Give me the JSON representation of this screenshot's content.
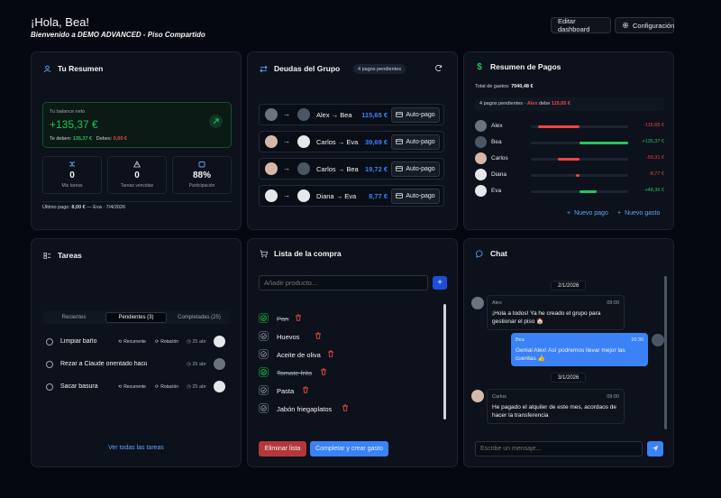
{
  "header": {
    "greeting": "¡Hola, Bea!",
    "subtitle": "Bienvenido a DEMO ADVANCED - Piso Compartido",
    "edit_btn": "Editar dashboard",
    "config_btn": "Configuración"
  },
  "summary": {
    "title": "Tu Resumen",
    "balance_label": "Tu balance neto",
    "balance": "+135,37 €",
    "owed_label": "Te deben:",
    "owed": "135,37 €",
    "debt_label": "Debes:",
    "debt": "0,00 €",
    "stats": [
      {
        "value": "0",
        "label": "Mis tareas",
        "icon": "shuffle-icon"
      },
      {
        "value": "0",
        "label": "Tareas vencidas",
        "icon": "warning-icon"
      },
      {
        "value": "88%",
        "label": "Participación",
        "icon": "calendar-icon"
      }
    ],
    "last_payment": "Último pago:",
    "last_amount": "8,00 €",
    "last_detail": "— Eva · 7/4/2026"
  },
  "debts": {
    "title": "Deudas del Grupo",
    "badge": "4 pagos pendientes",
    "autopay": "Auto-pago",
    "items": [
      {
        "pair": "Alex → Bea",
        "amount": "115,65 €"
      },
      {
        "pair": "Carlos → Eva",
        "amount": "39,69 €"
      },
      {
        "pair": "Carlos → Bea",
        "amount": "19,72 €"
      },
      {
        "pair": "Diana → Eva",
        "amount": "8,77 €"
      }
    ]
  },
  "payments": {
    "title": "Resumen de Pagos",
    "total_label": "Total de gastos:",
    "total": "7040,48 €",
    "note_prefix": "4 pagos pendientes ·",
    "note_person": "Alex",
    "note_mid": "debe",
    "note_amount": "115,65 €",
    "rows": [
      {
        "name": "Alex",
        "value": "-115,65 €",
        "fraction": -0.85,
        "color": "#ef4444"
      },
      {
        "name": "Bea",
        "value": "+135,37 €",
        "fraction": 1.0,
        "color": "#22c55e"
      },
      {
        "name": "Carlos",
        "value": "-59,31 €",
        "fraction": -0.44,
        "color": "#ef4444"
      },
      {
        "name": "Diana",
        "value": "-8,77 €",
        "fraction": -0.07,
        "color": "#ef4444"
      },
      {
        "name": "Eva",
        "value": "+48,36 €",
        "fraction": 0.36,
        "color": "#22c55e"
      }
    ],
    "new_payment": "Nuevo pago",
    "new_expense": "Nuevo gasto"
  },
  "tasks": {
    "title": "Tareas",
    "tabs": [
      "Recientes",
      "Pendientes (3)",
      "Completadas (25)"
    ],
    "recurring": "Recurrente",
    "rotation": "Rotación",
    "items": [
      {
        "label": "Limpiar baño",
        "date": "25 abr",
        "tags": true
      },
      {
        "label": "Rezar a Claude orientado hacia el datacenter",
        "date": "26 abr",
        "tags": false
      },
      {
        "label": "Sacar basura",
        "date": "25 abr",
        "tags": true
      }
    ],
    "see_all": "Ver todas las tareas"
  },
  "shopping": {
    "title": "Lista de la compra",
    "placeholder": "Añadir producto...",
    "items": [
      {
        "name": "Pan",
        "done": true
      },
      {
        "name": "Huevos",
        "done": false
      },
      {
        "name": "Aceite de oliva",
        "done": false
      },
      {
        "name": "Tomate frito",
        "done": true
      },
      {
        "name": "Pasta",
        "done": false
      },
      {
        "name": "Jabón friegaplatos",
        "done": false
      }
    ],
    "delete_btn": "Eliminar lista",
    "complete_btn": "Completar y crear gasto"
  },
  "chat": {
    "title": "Chat",
    "placeholder": "Escribe un mensaje...",
    "date1": "2/1/2026",
    "date2": "3/1/2026",
    "messages": [
      {
        "author": "Alex",
        "time": "09:00",
        "text": "¡Hola a todos! Ya he creado el grupo para gestionar el piso 🏠"
      },
      {
        "author": "Bea",
        "time": "10:30",
        "text": "Genial Alex! Así podremos llevar mejor las cuentas 👍"
      },
      {
        "author": "Carlos",
        "time": "09:00",
        "text": "He pagado el alquiler de este mes, acordaos de hacer la transferencia"
      }
    ]
  },
  "colors": {
    "accent": "#3b82f6",
    "green": "#22c55e",
    "red": "#ef4444"
  }
}
